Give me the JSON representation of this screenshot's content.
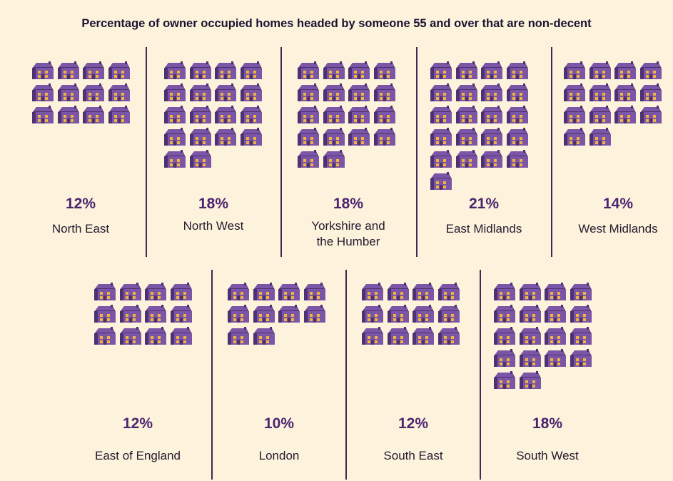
{
  "title": "Percentage of owner occupied homes headed by someone 55 and over that are non-decent",
  "colors": {
    "background": "#fdf3dc",
    "house": "#7b55a6",
    "house_dark": "#4e3172",
    "window": "#f2b53b",
    "percent_text": "#4b2470"
  },
  "icon": "house-icon",
  "chart_data": {
    "type": "pictogram",
    "title": "Percentage of owner occupied homes headed by someone 55 and over that are non-decent",
    "unit": "%",
    "regions": [
      {
        "name": "North East",
        "value": 12,
        "label": "12%"
      },
      {
        "name": "North West",
        "value": 18,
        "label": "18%"
      },
      {
        "name": "Yorkshire and\nthe Humber",
        "value": 18,
        "label": "18%"
      },
      {
        "name": "East Midlands",
        "value": 21,
        "label": "21%"
      },
      {
        "name": "West Midlands",
        "value": 14,
        "label": "14%"
      },
      {
        "name": "East of England",
        "value": 12,
        "label": "12%"
      },
      {
        "name": "London",
        "value": 10,
        "label": "10%"
      },
      {
        "name": "South East",
        "value": 12,
        "label": "12%"
      },
      {
        "name": "South West",
        "value": 18,
        "label": "18%"
      }
    ]
  }
}
